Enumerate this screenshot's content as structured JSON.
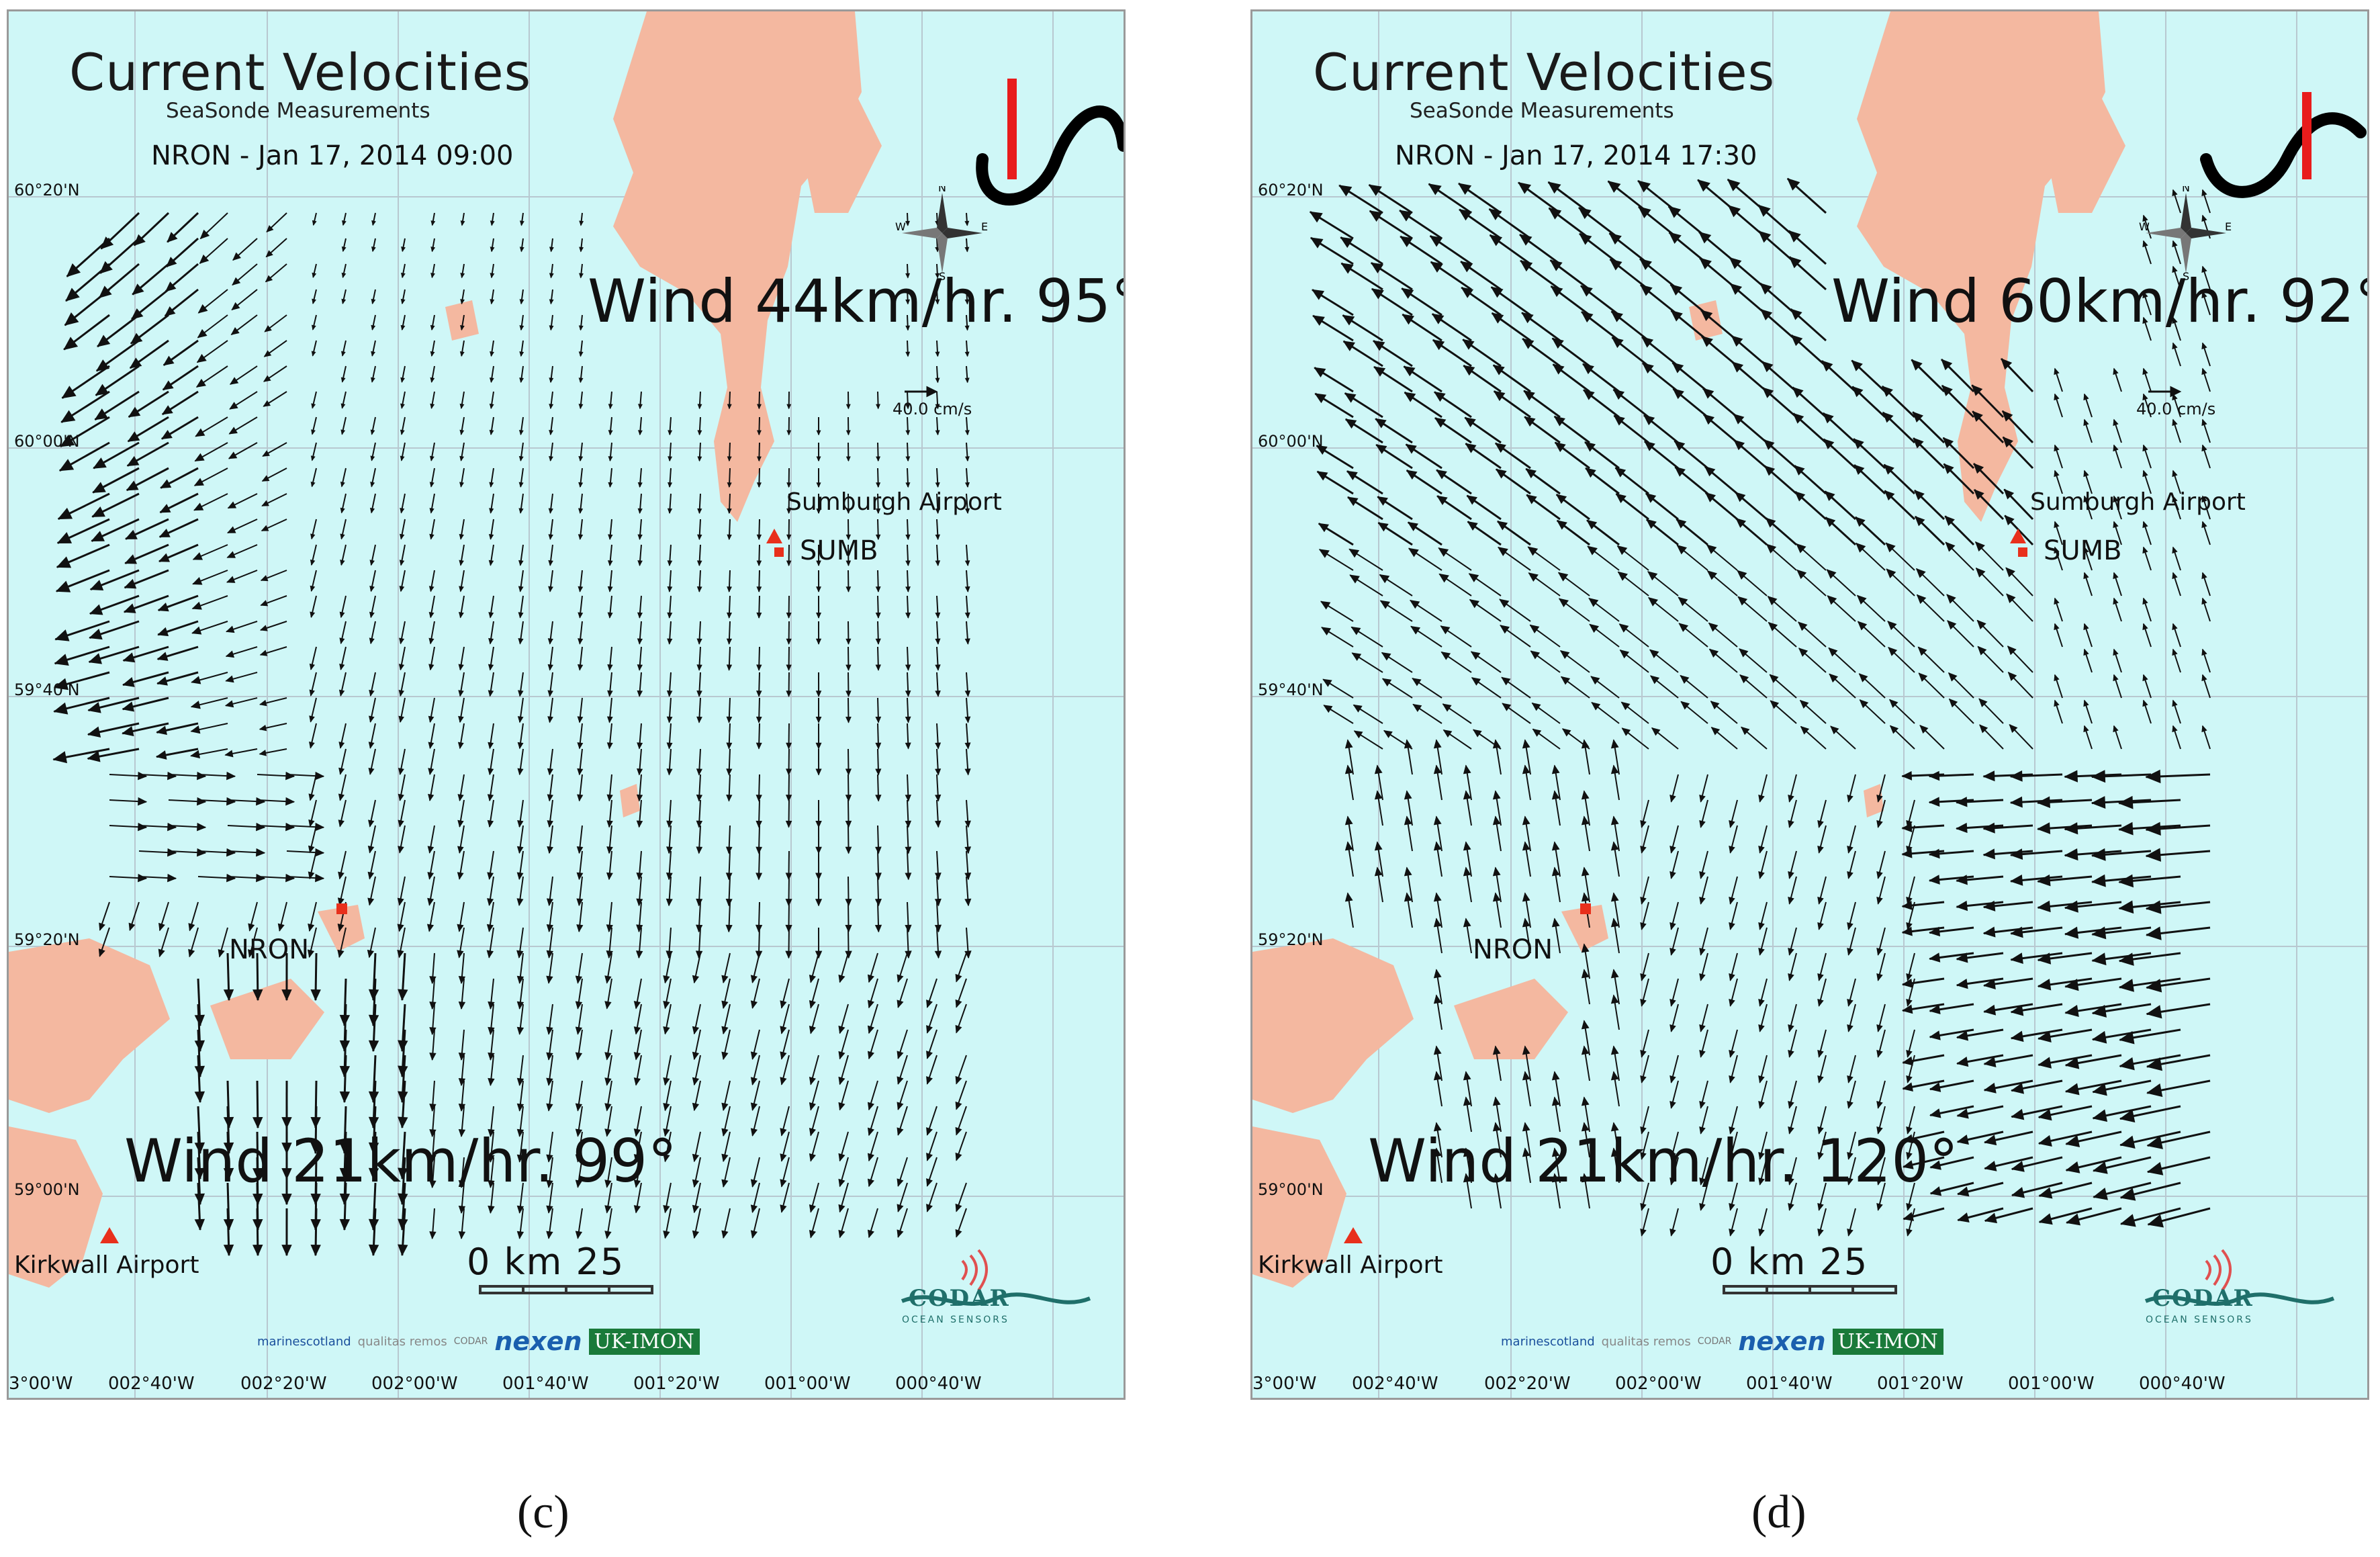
{
  "panels": [
    {
      "id": "c",
      "title": "Current Velocities",
      "subtitle": "SeaSonde Measurements",
      "timestamp": "NRON - Jan 17, 2014 09:00",
      "wind_top": "Wind 44km/hr. 95°",
      "wind_bottom": "Wind 21km/hr. 99°",
      "caption": "(c)"
    },
    {
      "id": "d",
      "title": "Current Velocities",
      "subtitle": "SeaSonde Measurements",
      "timestamp": "NRON - Jan 17, 2014 17:30",
      "wind_top": "Wind 60km/hr. 92°",
      "wind_bottom": "Wind 21km/hr. 120°",
      "caption": "(d)"
    }
  ],
  "map": {
    "lat_labels": [
      "60°20'N",
      "60°00'N",
      "59°40'N",
      "59°20'N",
      "59°00'N"
    ],
    "lon_labels": [
      "3°00'W",
      "002°40'W",
      "002°20'W",
      "002°00'W",
      "001°40'W",
      "001°20'W",
      "001°00'W",
      "000°40'W"
    ],
    "site_nron": "NRON",
    "site_sumb": "SUMB",
    "airport_sumburgh": "Sumburgh Airport",
    "airport_kirkwall": "Kirkwall Airport",
    "scale_label": "0    km    25",
    "legend_vector": "40.0 cm/s",
    "compass": {
      "n": "N",
      "s": "S",
      "e": "E",
      "w": "W"
    },
    "logos": {
      "marine_scotland": "marinescotland",
      "qualitas": "qualitas remos",
      "codar_small": "CODAR",
      "nexen": "nexen",
      "ukimon": "UK-IMON",
      "codar": "CODAR",
      "codar_sub": "OCEAN SENSORS"
    }
  },
  "colors": {
    "sea": "#cff7f7",
    "land": "#f4b8a0",
    "site_marker": "#e8301c",
    "vectors": "#111111",
    "tidal_bar": "#e81c1c"
  },
  "tidal_indicator": [
    {
      "panel": "c",
      "phase": "after high water"
    },
    {
      "panel": "d",
      "phase": "near low water"
    }
  ]
}
